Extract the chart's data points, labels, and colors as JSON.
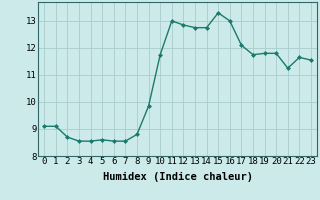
{
  "x": [
    0,
    1,
    2,
    3,
    4,
    5,
    6,
    7,
    8,
    9,
    10,
    11,
    12,
    13,
    14,
    15,
    16,
    17,
    18,
    19,
    20,
    21,
    22,
    23
  ],
  "y": [
    9.1,
    9.1,
    8.7,
    8.55,
    8.55,
    8.6,
    8.55,
    8.55,
    8.8,
    9.85,
    11.75,
    13.0,
    12.85,
    12.75,
    12.75,
    13.3,
    13.0,
    12.1,
    11.75,
    11.8,
    11.8,
    11.25,
    11.65,
    11.55
  ],
  "line_color": "#1a7a6e",
  "marker": "D",
  "marker_size": 2.0,
  "bg_color": "#cceaea",
  "grid_color": "#aacccc",
  "xlabel": "Humidex (Indice chaleur)",
  "xlim": [
    -0.5,
    23.5
  ],
  "ylim": [
    8,
    13.7
  ],
  "yticks": [
    8,
    9,
    10,
    11,
    12,
    13
  ],
  "xticks": [
    0,
    1,
    2,
    3,
    4,
    5,
    6,
    7,
    8,
    9,
    10,
    11,
    12,
    13,
    14,
    15,
    16,
    17,
    18,
    19,
    20,
    21,
    22,
    23
  ],
  "xlabel_fontsize": 7.5,
  "tick_fontsize": 6.5,
  "linewidth": 1.0
}
